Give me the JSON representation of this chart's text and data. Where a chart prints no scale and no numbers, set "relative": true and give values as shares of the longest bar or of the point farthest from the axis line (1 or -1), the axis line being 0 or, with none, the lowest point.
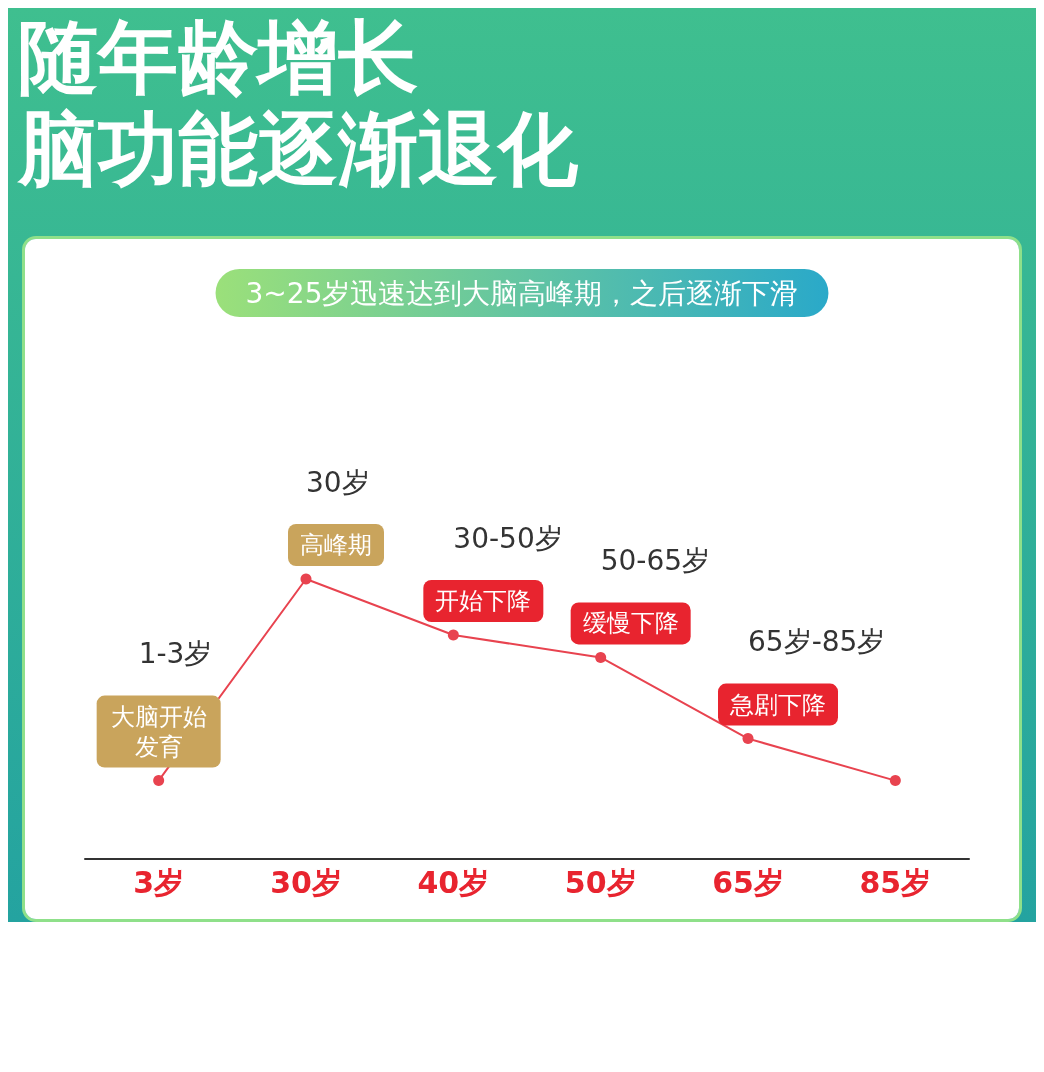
{
  "chart_data": {
    "type": "line",
    "title": "随年龄增长",
    "subtitle": "脑功能逐渐退化",
    "relative": true,
    "categories": [
      "3岁",
      "30岁",
      "40岁",
      "50岁",
      "65岁",
      "85岁"
    ],
    "series": [
      {
        "color": "#e8434f",
        "values": [
          0.28,
          1,
          0.8,
          0.72,
          0.43,
          0.28
        ]
      }
    ],
    "marker": "circle",
    "annotations": [
      "3~25岁迅速达到大脑高峰期，之后逐渐下滑",
      "1-3岁",
      {
        "text": "大脑开始发育",
        "x": "3岁",
        "y": 0.28
      },
      "30岁",
      {
        "text": "高峰期",
        "x": "30岁",
        "y": 1
      },
      "30-50岁",
      {
        "text": "开始下降",
        "x": "40岁",
        "y": 0.8
      },
      "50-65岁",
      {
        "text": "缓慢下降",
        "x": "50岁",
        "y": 0.72
      },
      "65岁-85岁",
      {
        "text": "急剧下降",
        "x": "65岁",
        "y": 0.43
      }
    ]
  }
}
